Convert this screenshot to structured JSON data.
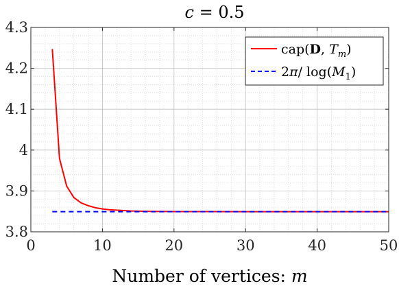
{
  "chart_data": {
    "type": "line",
    "title": "c = 0.5",
    "title_parts": {
      "var": "c",
      "rest": " = 0.5"
    },
    "xlabel": "Number of vertices: m",
    "xlabel_parts": {
      "text": "Number of vertices: ",
      "var": "m"
    },
    "ylabel": "",
    "xlim": [
      0,
      50
    ],
    "ylim": [
      3.8,
      4.3
    ],
    "xticks": [
      0,
      10,
      20,
      30,
      40,
      50
    ],
    "xtick_labels": [
      "0",
      "10",
      "20",
      "30",
      "40",
      "50"
    ],
    "yticks": [
      3.8,
      3.9,
      4.0,
      4.1,
      4.2,
      4.3
    ],
    "ytick_labels": [
      "3.8",
      "3.9",
      "4",
      "4.1",
      "4.2",
      "4.3"
    ],
    "grid": true,
    "minor_grid": true,
    "legend_placement": "top-right",
    "series": [
      {
        "name": "cap(D, T_m)",
        "legend_label": "cap(D, T_m)",
        "color": "#ff0000",
        "style": "solid",
        "x": [
          3,
          4,
          5,
          6,
          7,
          8,
          9,
          10,
          11,
          12,
          13,
          14,
          15,
          16,
          17,
          18,
          19,
          20,
          22,
          25,
          30,
          35,
          40,
          45,
          50
        ],
        "y": [
          4.247,
          3.98,
          3.912,
          3.884,
          3.871,
          3.864,
          3.859,
          3.856,
          3.854,
          3.853,
          3.852,
          3.851,
          3.8505,
          3.8502,
          3.85,
          3.8498,
          3.8497,
          3.8496,
          3.8495,
          3.8494,
          3.8493,
          3.8493,
          3.8493,
          3.8493,
          3.8493
        ]
      },
      {
        "name": "2π/log(M_1)",
        "legend_label": "2π/log(M_1)",
        "color": "#0000ff",
        "style": "dashed",
        "x": [
          3,
          50
        ],
        "y": [
          3.8493,
          3.8493
        ]
      }
    ]
  }
}
